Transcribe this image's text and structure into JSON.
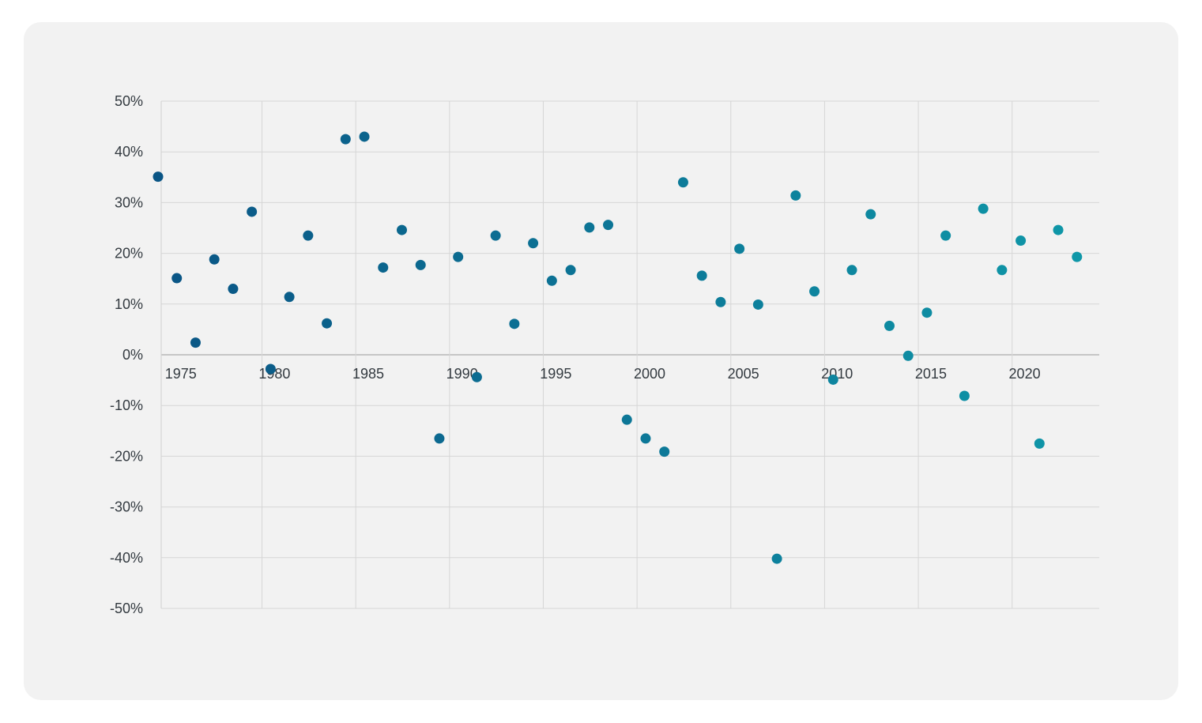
{
  "chart_data": {
    "type": "scatter",
    "title": "",
    "xlabel": "",
    "ylabel": "",
    "xlim": [
      1974,
      2023.8
    ],
    "ylim": [
      -50,
      50
    ],
    "x_ticks": [
      {
        "value": 1975,
        "label": "1975"
      },
      {
        "value": 1980,
        "label": "1980"
      },
      {
        "value": 1985,
        "label": "1985"
      },
      {
        "value": 1990,
        "label": "1990"
      },
      {
        "value": 1995,
        "label": "1995"
      },
      {
        "value": 2000,
        "label": "2000"
      },
      {
        "value": 2005,
        "label": "2005"
      },
      {
        "value": 2010,
        "label": "2010"
      },
      {
        "value": 2015,
        "label": "2015"
      },
      {
        "value": 2020,
        "label": "2020"
      }
    ],
    "y_ticks": [
      {
        "value": 50,
        "label": "50%"
      },
      {
        "value": 40,
        "label": "40%"
      },
      {
        "value": 30,
        "label": "30%"
      },
      {
        "value": 20,
        "label": "20%"
      },
      {
        "value": 10,
        "label": "10%"
      },
      {
        "value": 0,
        "label": "0%"
      },
      {
        "value": -10,
        "label": "-10%"
      },
      {
        "value": -20,
        "label": "-20%"
      },
      {
        "value": -30,
        "label": "-30%"
      },
      {
        "value": -40,
        "label": "-40%"
      },
      {
        "value": -50,
        "label": "-50%"
      }
    ],
    "grid": true,
    "legend": "none",
    "color_start": "#0a5585",
    "color_end": "#0f97a8",
    "series": [
      {
        "points": [
          {
            "x": 1974,
            "y": 35.1
          },
          {
            "x": 1975,
            "y": 15.1
          },
          {
            "x": 1976,
            "y": 2.4
          },
          {
            "x": 1977,
            "y": 18.8
          },
          {
            "x": 1978,
            "y": 13.0
          },
          {
            "x": 1979,
            "y": 28.2
          },
          {
            "x": 1980,
            "y": -2.8
          },
          {
            "x": 1981,
            "y": 11.4
          },
          {
            "x": 1982,
            "y": 23.5
          },
          {
            "x": 1983,
            "y": 6.2
          },
          {
            "x": 1984,
            "y": 42.5
          },
          {
            "x": 1985,
            "y": 43.0
          },
          {
            "x": 1986,
            "y": 17.2
          },
          {
            "x": 1987,
            "y": 24.6
          },
          {
            "x": 1988,
            "y": 17.7
          },
          {
            "x": 1989,
            "y": -16.5
          },
          {
            "x": 1990,
            "y": 19.3
          },
          {
            "x": 1991,
            "y": -4.4
          },
          {
            "x": 1992,
            "y": 23.5
          },
          {
            "x": 1993,
            "y": 6.1
          },
          {
            "x": 1994,
            "y": 22.0
          },
          {
            "x": 1995,
            "y": 14.6
          },
          {
            "x": 1996,
            "y": 16.7
          },
          {
            "x": 1997,
            "y": 25.1
          },
          {
            "x": 1998,
            "y": 25.6
          },
          {
            "x": 1999,
            "y": -12.8
          },
          {
            "x": 2000,
            "y": -16.5
          },
          {
            "x": 2001,
            "y": -19.1
          },
          {
            "x": 2002,
            "y": 34.0
          },
          {
            "x": 2003,
            "y": 15.6
          },
          {
            "x": 2004,
            "y": 10.4
          },
          {
            "x": 2005,
            "y": 20.9
          },
          {
            "x": 2006,
            "y": 9.9
          },
          {
            "x": 2007,
            "y": -40.2
          },
          {
            "x": 2008,
            "y": 31.4
          },
          {
            "x": 2009,
            "y": 12.5
          },
          {
            "x": 2010,
            "y": -4.9
          },
          {
            "x": 2011,
            "y": 16.7
          },
          {
            "x": 2012,
            "y": 27.7
          },
          {
            "x": 2013,
            "y": 5.7
          },
          {
            "x": 2014,
            "y": -0.2
          },
          {
            "x": 2015,
            "y": 8.3
          },
          {
            "x": 2016,
            "y": 23.5
          },
          {
            "x": 2017,
            "y": -8.1
          },
          {
            "x": 2018,
            "y": 28.8
          },
          {
            "x": 2019,
            "y": 16.7
          },
          {
            "x": 2020,
            "y": 22.5
          },
          {
            "x": 2021,
            "y": -17.5
          },
          {
            "x": 2022,
            "y": 24.6
          },
          {
            "x": 2023,
            "y": 19.3
          }
        ]
      }
    ]
  }
}
